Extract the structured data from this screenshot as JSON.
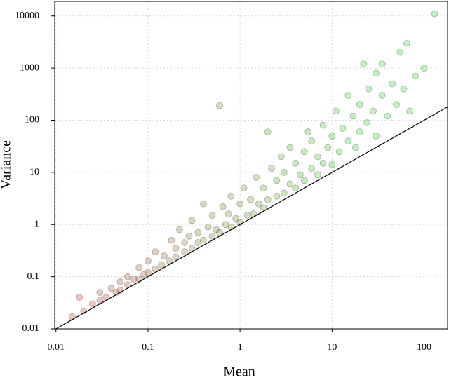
{
  "chart_data": {
    "type": "scatter",
    "x_label": "Mean",
    "y_label": "Variance",
    "log_x": true,
    "log_y": true,
    "grid": true,
    "xlim": [
      0.0097,
      180
    ],
    "ylim": [
      0.01,
      19000
    ],
    "xticks": [
      0.01,
      0.1,
      1,
      10,
      100
    ],
    "yticks": [
      0.01,
      0.1,
      1,
      10,
      100,
      1000,
      10000
    ],
    "color_low": "#cc0000",
    "color_high": "#00cc00",
    "x": [
      0.015,
      0.018,
      0.02,
      0.025,
      0.03,
      0.03,
      0.035,
      0.04,
      0.045,
      0.05,
      0.05,
      0.06,
      0.06,
      0.07,
      0.08,
      0.08,
      0.09,
      0.1,
      0.1,
      0.12,
      0.12,
      0.14,
      0.15,
      0.17,
      0.18,
      0.2,
      0.2,
      0.22,
      0.25,
      0.25,
      0.28,
      0.3,
      0.3,
      0.35,
      0.35,
      0.4,
      0.4,
      0.45,
      0.5,
      0.5,
      0.55,
      0.6,
      0.6,
      0.65,
      0.7,
      0.75,
      0.8,
      0.8,
      0.9,
      1,
      1,
      1.1,
      1.2,
      1.3,
      1.4,
      1.5,
      1.6,
      1.8,
      1.8,
      2,
      2,
      2.2,
      2.5,
      2.5,
      2.8,
      3,
      3,
      3.5,
      3.5,
      4,
      4,
      4.5,
      5,
      5,
      5.5,
      6,
      6,
      7,
      7,
      8,
      8,
      9,
      10,
      10,
      11,
      12,
      13,
      15,
      15,
      17,
      18,
      20,
      20,
      22,
      24,
      25,
      28,
      30,
      30,
      35,
      35,
      40,
      45,
      50,
      55,
      60,
      65,
      70,
      80,
      100,
      130
    ],
    "values": [
      0.017,
      0.04,
      0.022,
      0.03,
      0.035,
      0.05,
      0.04,
      0.06,
      0.05,
      0.08,
      0.055,
      0.07,
      0.1,
      0.09,
      0.09,
      0.15,
      0.11,
      0.12,
      0.2,
      0.14,
      0.3,
      0.17,
      0.25,
      0.2,
      0.5,
      0.24,
      0.35,
      0.8,
      0.3,
      0.45,
      0.6,
      0.35,
      1.2,
      0.45,
      0.7,
      0.5,
      2.5,
      0.9,
      0.6,
      1.5,
      0.8,
      190,
      0.7,
      2.2,
      1.0,
      1.6,
      0.9,
      3.5,
      1.3,
      1.1,
      2.5,
      5,
      1.5,
      3,
      1.6,
      8,
      2.5,
      2.1,
      5,
      3,
      60,
      12,
      3.5,
      7,
      20,
      4,
      10,
      6,
      30,
      5,
      15,
      9,
      7,
      25,
      60,
      12,
      40,
      9,
      20,
      15,
      80,
      30,
      14,
      50,
      150,
      25,
      70,
      40,
      300,
      120,
      30,
      60,
      200,
      1200,
      90,
      400,
      150,
      50,
      800,
      300,
      1200,
      120,
      500,
      200,
      2000,
      400,
      3000,
      150,
      700,
      1000,
      11000
    ],
    "reference_line": {
      "x": [
        0.01,
        180
      ],
      "values": [
        0.01,
        180
      ]
    }
  }
}
